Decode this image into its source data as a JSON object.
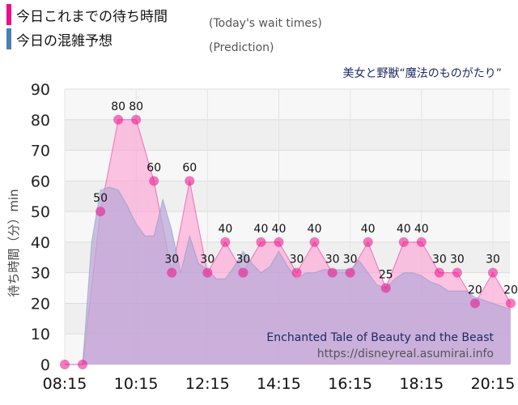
{
  "legend": {
    "today_label": "今日これまでの待ち時間",
    "today_sub": "(Today's wait times)",
    "prediction_label": "今日の混雑予想",
    "prediction_sub": "(Prediction)"
  },
  "attraction_jp": "美女と野獣“魔法のものがたり”",
  "attraction_en": "Enchanted Tale of Beauty and the Beast",
  "site_url": "https://disneyreal.asumirai.info",
  "colors": {
    "today": "#ec0d8c",
    "prediction": "#4b7fb4",
    "today_fill": "#ff9fd2",
    "prediction_fill": "#b9a9d8",
    "text_dark": "#1f2a66"
  },
  "chart_data": {
    "type": "area",
    "ylabel": "待ち時間（分）min",
    "ylim": [
      0,
      90
    ],
    "yticks": [
      "0",
      "10",
      "20",
      "30",
      "40",
      "50",
      "60",
      "70",
      "80",
      "90"
    ],
    "xlim": [
      "08:15",
      "20:30"
    ],
    "xticks": [
      "08:15",
      "10:15",
      "12:15",
      "14:15",
      "16:15",
      "18:15",
      "20:15"
    ],
    "grid": true,
    "series": [
      {
        "name": "今日これまでの待ち時間",
        "x": [
          "08:15",
          "08:45",
          "09:15",
          "09:45",
          "10:15",
          "10:45",
          "11:15",
          "11:45",
          "12:15",
          "12:45",
          "13:15",
          "13:45",
          "14:15",
          "14:45",
          "15:15",
          "15:45",
          "16:15",
          "16:45",
          "17:15",
          "17:45",
          "18:15",
          "18:45",
          "19:15",
          "19:45",
          "20:15",
          "20:45"
        ],
        "values": [
          0,
          0,
          50,
          80,
          80,
          60,
          30,
          60,
          30,
          40,
          30,
          40,
          40,
          30,
          40,
          30,
          30,
          40,
          25,
          40,
          40,
          30,
          30,
          20,
          30,
          20
        ],
        "labels": [
          "",
          "",
          "50",
          "80",
          "80",
          "60",
          "30",
          "60",
          "30",
          "40",
          "30",
          "40",
          "40",
          "30",
          "40",
          "30",
          "30",
          "40",
          "25",
          "40",
          "40",
          "30",
          "30",
          "20",
          "30",
          "20"
        ]
      },
      {
        "name": "今日の混雑予想",
        "x": [
          "08:15",
          "08:45",
          "09:00",
          "09:15",
          "09:30",
          "09:45",
          "10:00",
          "10:15",
          "10:30",
          "10:45",
          "11:00",
          "11:15",
          "11:30",
          "11:45",
          "12:00",
          "12:15",
          "12:30",
          "12:45",
          "13:00",
          "13:15",
          "13:30",
          "13:45",
          "14:00",
          "14:15",
          "14:30",
          "14:45",
          "15:00",
          "15:15",
          "15:30",
          "15:45",
          "16:00",
          "16:15",
          "16:30",
          "16:45",
          "17:00",
          "17:15",
          "17:30",
          "17:45",
          "18:00",
          "18:15",
          "18:30",
          "18:45",
          "19:00",
          "19:15",
          "19:30",
          "19:45",
          "20:00",
          "20:15",
          "20:30",
          "20:45"
        ],
        "values": [
          0,
          0,
          40,
          57,
          58,
          57,
          52,
          46,
          42,
          42,
          54,
          44,
          30,
          42,
          33,
          31,
          28,
          28,
          32,
          37,
          33,
          30,
          32,
          37,
          32,
          28,
          30,
          30,
          31,
          31,
          31,
          31,
          34,
          30,
          26,
          25,
          28,
          30,
          30,
          29,
          27,
          26,
          24,
          24,
          24,
          22,
          21,
          20,
          19,
          18
        ]
      }
    ]
  }
}
